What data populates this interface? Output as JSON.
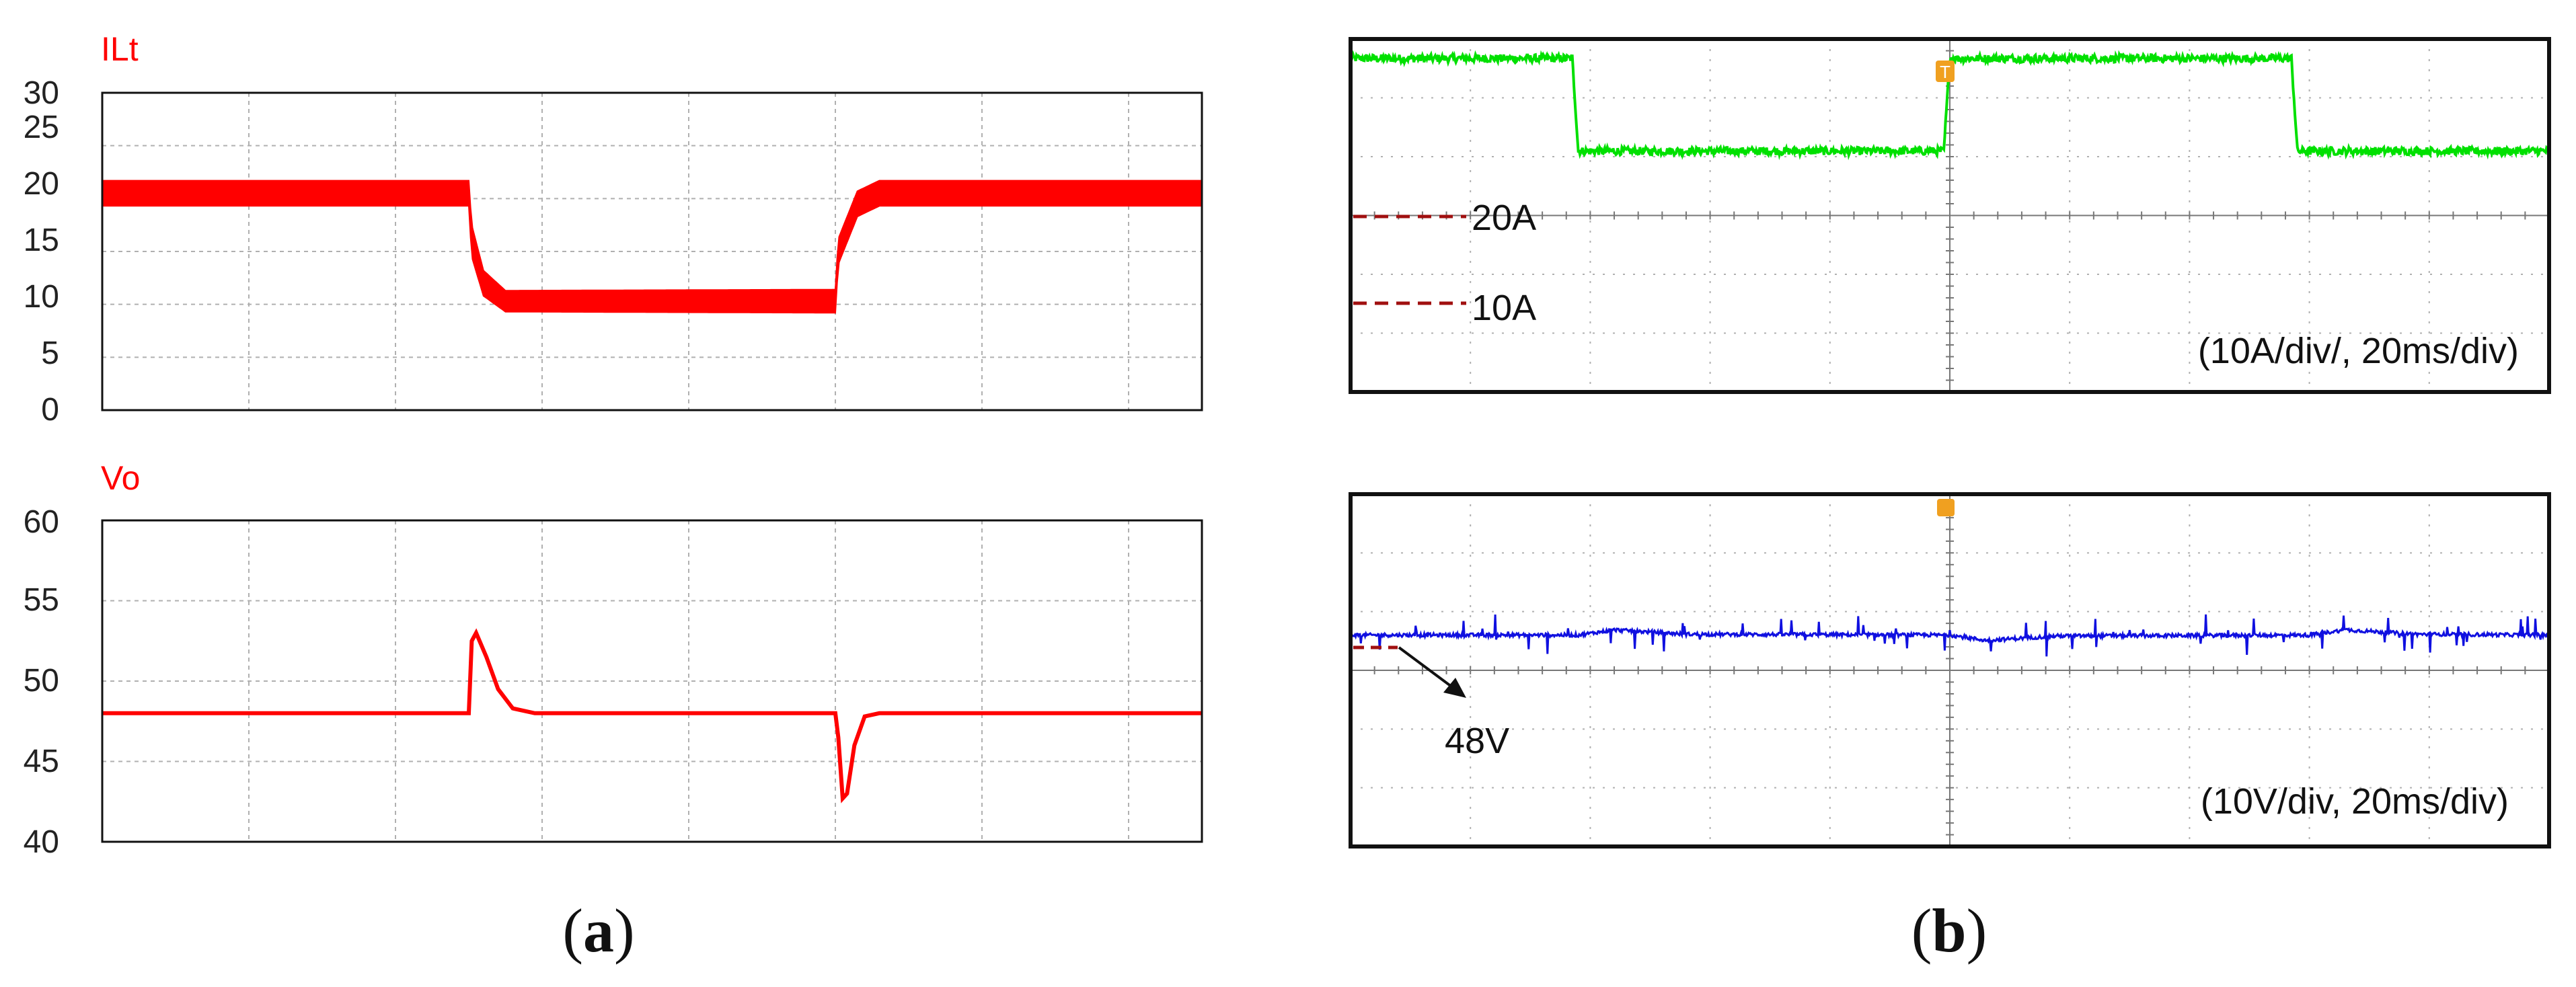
{
  "colors": {
    "sim_trace": "#ff0000",
    "scope_current": "#00e000",
    "scope_voltage": "#1010e0",
    "reference_marker": "#a01010",
    "trigger_marker": "#f0a020",
    "grid": "#b0b0b0"
  },
  "panel_labels": {
    "a_open": "(",
    "a_letter": "a",
    "a_close": ")",
    "b_open": "(",
    "b_letter": "b",
    "b_close": ")"
  },
  "chart_data": [
    {
      "type": "line",
      "panel": "a-top",
      "signal_label": "ILt",
      "ylim": [
        0,
        30
      ],
      "yticks": [
        "0",
        "5",
        "10",
        "15",
        "20",
        "25",
        "30"
      ],
      "grid": true,
      "x_divisions": 7.5,
      "series": [
        {
          "name": "ILt",
          "band": true,
          "points": [
            {
              "x": 0,
              "y": 20.5,
              "lo": 19.3,
              "hi": 21.7
            },
            {
              "x": 2.5,
              "y": 20.5,
              "lo": 19.3,
              "hi": 21.7
            },
            {
              "x": 2.52,
              "y": 16.0,
              "lo": 14.5,
              "hi": 17.5
            },
            {
              "x": 2.6,
              "y": 12.0,
              "lo": 10.8,
              "hi": 13.2
            },
            {
              "x": 2.75,
              "y": 10.4,
              "lo": 9.3,
              "hi": 11.3
            },
            {
              "x": 5.0,
              "y": 10.2,
              "lo": 9.2,
              "hi": 11.4
            },
            {
              "x": 5.02,
              "y": 15.0,
              "lo": 13.8,
              "hi": 16.2
            },
            {
              "x": 5.15,
              "y": 19.5,
              "lo": 18.3,
              "hi": 20.7
            },
            {
              "x": 5.3,
              "y": 20.5,
              "lo": 19.3,
              "hi": 21.7
            },
            {
              "x": 7.5,
              "y": 20.5,
              "lo": 19.3,
              "hi": 21.7
            }
          ]
        }
      ]
    },
    {
      "type": "line",
      "panel": "a-bottom",
      "signal_label": "Vo",
      "ylim": [
        40,
        60
      ],
      "yticks": [
        "40",
        "45",
        "50",
        "55",
        "60"
      ],
      "grid": true,
      "x_divisions": 7.5,
      "series": [
        {
          "name": "Vo",
          "points": [
            {
              "x": 0,
              "y": 48
            },
            {
              "x": 2.5,
              "y": 48
            },
            {
              "x": 2.52,
              "y": 52.5
            },
            {
              "x": 2.55,
              "y": 53.0
            },
            {
              "x": 2.62,
              "y": 51.5
            },
            {
              "x": 2.7,
              "y": 49.5
            },
            {
              "x": 2.8,
              "y": 48.3
            },
            {
              "x": 2.95,
              "y": 48.0
            },
            {
              "x": 5.0,
              "y": 48
            },
            {
              "x": 5.02,
              "y": 46.5
            },
            {
              "x": 5.05,
              "y": 42.7
            },
            {
              "x": 5.08,
              "y": 43.0
            },
            {
              "x": 5.13,
              "y": 46.0
            },
            {
              "x": 5.2,
              "y": 47.8
            },
            {
              "x": 5.3,
              "y": 48.0
            },
            {
              "x": 7.5,
              "y": 48
            }
          ]
        }
      ]
    },
    {
      "type": "line",
      "panel": "b-top",
      "annotation": "(10A/div/, 20ms/div)",
      "markers": [
        {
          "label": "20A",
          "y": 20.7
        },
        {
          "label": "10A",
          "y": 10.3
        }
      ],
      "ylim": [
        -17,
        23
      ],
      "x_divisions": 10,
      "grid": true,
      "series": [
        {
          "name": "current",
          "points": [
            {
              "x": 0,
              "y": 20.8
            },
            {
              "x": 1.85,
              "y": 20.8
            },
            {
              "x": 1.9,
              "y": 10.3
            },
            {
              "x": 4.95,
              "y": 10.3
            },
            {
              "x": 5.0,
              "y": 20.8
            },
            {
              "x": 7.85,
              "y": 20.8
            },
            {
              "x": 7.9,
              "y": 10.3
            },
            {
              "x": 10,
              "y": 10.3
            }
          ]
        }
      ]
    },
    {
      "type": "line",
      "panel": "b-bottom",
      "annotation": "(10V/div, 20ms/div)",
      "marker_label": "48V",
      "ylim": [
        0,
        80
      ],
      "x_divisions": 10,
      "grid": true,
      "series": [
        {
          "name": "voltage",
          "points": [
            {
              "x": 0,
              "y": 48
            },
            {
              "x": 1.9,
              "y": 48
            },
            {
              "x": 2.2,
              "y": 49.2
            },
            {
              "x": 2.8,
              "y": 48.2
            },
            {
              "x": 5.0,
              "y": 48
            },
            {
              "x": 5.3,
              "y": 46.8
            },
            {
              "x": 5.9,
              "y": 47.8
            },
            {
              "x": 8.0,
              "y": 48
            },
            {
              "x": 8.3,
              "y": 49.2
            },
            {
              "x": 8.9,
              "y": 48.2
            },
            {
              "x": 10,
              "y": 48
            }
          ]
        }
      ]
    }
  ]
}
